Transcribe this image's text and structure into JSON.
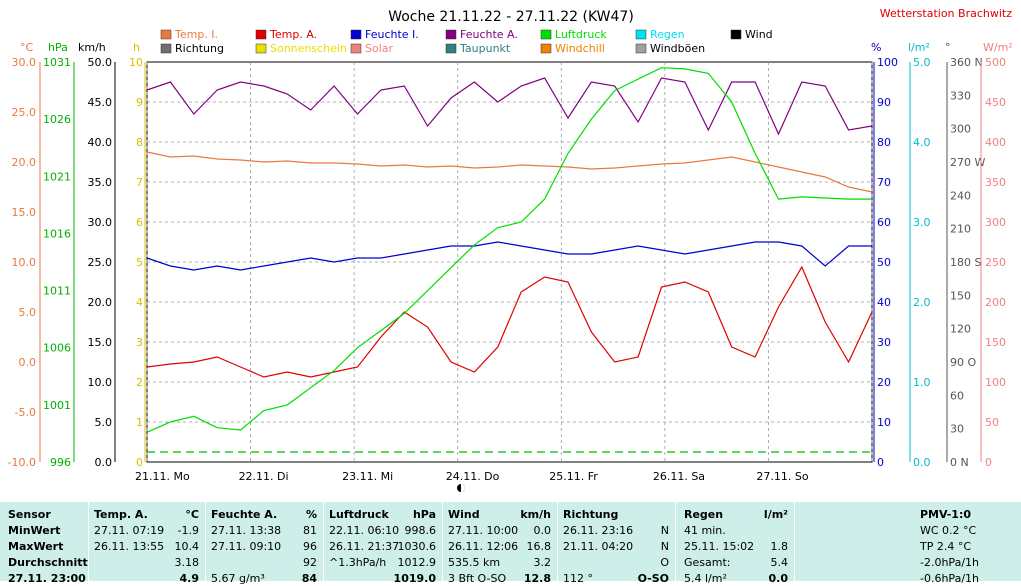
{
  "header": {
    "title": "Woche 21.11.22 - 27.11.22 (KW47)",
    "station": "Wetterstation Brachwitz"
  },
  "colors": {
    "temp_i": "#e87a40",
    "temp_a": "#e00000",
    "feuchte_i": "#0000d0",
    "feuchte_a": "#800080",
    "luftdruck": "#00dd00",
    "regen": "#00e0f0",
    "wind": "#000000",
    "richtung": "#707070",
    "sonnenschein": "#e8e000",
    "solar": "#f08080",
    "taupunkt": "#308080",
    "windchill": "#f08000",
    "windboeen": "#a0a0a0"
  },
  "legend": {
    "temp_i": "Temp. I.",
    "temp_a": "Temp. A.",
    "feuchte_i": "Feuchte I.",
    "feuchte_a": "Feuchte A.",
    "luftdruck": "Luftdruck",
    "regen": "Regen",
    "wind": "Wind",
    "richtung": "Richtung",
    "sonnenschein": "Sonnenschein",
    "solar": "Solar",
    "taupunkt": "Taupunkt",
    "windchill": "Windchill",
    "windboeen": "Windböen"
  },
  "units": {
    "celsius": "°C",
    "hpa": "hPa",
    "kmh": "km/h",
    "h": "h",
    "percent": "%",
    "lm2": "l/m²",
    "deg": "°",
    "wm2": "W/m²"
  },
  "chart_data": {
    "type": "line",
    "x_labels": [
      "21.11. Mo",
      "22.11. Di",
      "23.11. Mi",
      "24.11. Do",
      "25.11. Fr",
      "26.11. Sa",
      "27.11. So"
    ],
    "axes": {
      "celsius": {
        "ticks": [
          "30.0",
          "25.0",
          "20.0",
          "15.0",
          "10.0",
          "5.0",
          "0.0",
          "-5.0",
          "-10.0"
        ],
        "range": [
          -10,
          30
        ]
      },
      "hpa": {
        "ticks": [
          "1031",
          "1026",
          "1021",
          "1016",
          "1011",
          "1006",
          "1001",
          "996"
        ],
        "range": [
          996,
          1031
        ]
      },
      "kmh": {
        "ticks": [
          "50.0",
          "45.0",
          "40.0",
          "35.0",
          "30.0",
          "25.0",
          "20.0",
          "15.0",
          "10.0",
          "5.0",
          "0.0"
        ],
        "range": [
          0,
          50
        ]
      },
      "hours": {
        "ticks": [
          "10",
          "9",
          "8",
          "7",
          "6",
          "5",
          "4",
          "3",
          "2",
          "1",
          "0"
        ],
        "range": [
          0,
          10
        ]
      },
      "percent": {
        "ticks": [
          "100",
          "90",
          "80",
          "70",
          "60",
          "50",
          "40",
          "30",
          "20",
          "10",
          "0"
        ],
        "range": [
          0,
          100
        ]
      },
      "rain": {
        "ticks": [
          "5.0",
          "4.0",
          "3.0",
          "2.0",
          "1.0",
          "0.0"
        ],
        "range": [
          0,
          5
        ]
      },
      "direction": {
        "ticks": [
          "360 N",
          "330",
          "300",
          "270 W",
          "240",
          "210",
          "180 S",
          "150",
          "120",
          "90 O",
          "60",
          "30",
          "0 N"
        ],
        "range": [
          0,
          360
        ]
      },
      "solar": {
        "ticks": [
          "500",
          "450",
          "400",
          "350",
          "300",
          "250",
          "200",
          "150",
          "100",
          "50",
          "0"
        ],
        "range": [
          0,
          500
        ]
      }
    },
    "day_sample_hours": [
      0,
      4,
      8,
      11,
      13,
      16,
      20,
      24
    ],
    "series": [
      {
        "name": "Temp. I.",
        "key": "temp_i",
        "axis": "celsius",
        "values": [
          21.0,
          20.5,
          20.6,
          20.3,
          20.2,
          20.0,
          20.1,
          19.9,
          19.9,
          19.8,
          19.6,
          19.7,
          19.5,
          19.6,
          19.4,
          19.5,
          19.7,
          19.6,
          19.5,
          19.3,
          19.4,
          19.6,
          19.8,
          19.9,
          20.2,
          20.5,
          20.0,
          19.5,
          19.0,
          18.5,
          17.5,
          17.0
        ]
      },
      {
        "name": "Temp. A.",
        "key": "temp_a",
        "axis": "celsius",
        "values": [
          -0.5,
          -0.2,
          0.0,
          0.5,
          -0.5,
          -1.5,
          -1.0,
          -1.5,
          -1.0,
          -0.5,
          2.5,
          5.0,
          3.5,
          0.0,
          -1.0,
          1.5,
          7.0,
          8.5,
          8.0,
          3.0,
          0.0,
          0.5,
          7.5,
          8.0,
          7.0,
          1.5,
          0.5,
          5.5,
          9.5,
          4.0,
          0.0,
          5.0
        ]
      },
      {
        "name": "Feuchte A.",
        "key": "feuchte_a",
        "axis": "percent",
        "values": [
          93,
          95,
          87,
          93,
          95,
          94,
          92,
          88,
          94,
          87,
          93,
          94,
          84,
          91,
          95,
          90,
          94,
          96,
          86,
          95,
          94,
          85,
          96,
          95,
          83,
          95,
          95,
          82,
          95,
          94,
          83,
          84
        ]
      },
      {
        "name": "Feuchte I.",
        "key": "feuchte_i",
        "axis": "percent",
        "values": [
          51,
          49,
          48,
          49,
          48,
          49,
          50,
          51,
          50,
          51,
          51,
          52,
          53,
          54,
          54,
          55,
          54,
          53,
          52,
          52,
          53,
          54,
          53,
          52,
          53,
          54,
          55,
          55,
          54,
          49,
          54,
          54
        ]
      },
      {
        "name": "Luftdruck",
        "key": "luftdruck",
        "axis": "hpa",
        "values": [
          998.6,
          999.5,
          1000.0,
          999.0,
          998.8,
          1000.5,
          1001.0,
          1002.5,
          1004.0,
          1006.0,
          1007.5,
          1009.0,
          1011.0,
          1013.0,
          1015.0,
          1016.5,
          1017.0,
          1019.0,
          1023.0,
          1026.0,
          1028.5,
          1029.5,
          1030.5,
          1030.4,
          1030.0,
          1027.5,
          1023.0,
          1019.0,
          1019.2,
          1019.1,
          1019.0,
          1019.0
        ]
      }
    ],
    "min_max": {
      "tmin": -1.9,
      "tmax": 10.4
    }
  },
  "stats": {
    "labels": [
      "Sensor",
      "MinWert",
      "MaxWert",
      "Durchschnitt",
      "27.11. 23:00"
    ],
    "temp": {
      "title": "Temp. A.",
      "unit": "°C",
      "rows": [
        [
          "27.11.  07:19",
          "-1.9"
        ],
        [
          "26.11.  13:55",
          "10.4"
        ],
        [
          "",
          "3.18"
        ],
        [
          "",
          "4.9"
        ]
      ]
    },
    "feuchte": {
      "title": "Feuchte A.",
      "unit": "%",
      "rows": [
        [
          "27.11.  13:38",
          "81"
        ],
        [
          "27.11.  09:10",
          "96"
        ],
        [
          "",
          "92"
        ],
        [
          "5.67 g/m³",
          "84"
        ]
      ]
    },
    "druck": {
      "title": "Luftdruck",
      "unit": "hPa",
      "rows": [
        [
          "22.11.  06:10",
          "998.6"
        ],
        [
          "26.11.  21:37",
          "1030.6"
        ],
        [
          "^1.3hPa/h",
          "1012.9"
        ],
        [
          "",
          "1019.0"
        ]
      ]
    },
    "wind": {
      "title": "Wind",
      "unit": "km/h",
      "rows": [
        [
          "27.11.  10:00",
          "0.0"
        ],
        [
          "26.11.  12:06",
          "16.8"
        ],
        [
          "535.5 km",
          "3.2"
        ],
        [
          "3 Bft O-SO",
          "12.8"
        ]
      ]
    },
    "richtung": {
      "title": "Richtung",
      "rows": [
        [
          "26.11.  23:16",
          "N"
        ],
        [
          "21.11.  04:20",
          "N"
        ],
        [
          "",
          "O"
        ],
        [
          "112 °",
          "O-SO"
        ]
      ]
    },
    "regen": {
      "title": "Regen",
      "unit": "l/m²",
      "rows": [
        [
          "41 min.",
          ""
        ],
        [
          "25.11.  15:02",
          "1.8"
        ],
        [
          "Gesamt:",
          "5.4"
        ],
        [
          "5.4 l/m²",
          "0.0"
        ]
      ]
    },
    "pmv": {
      "title": "PMV-1:0",
      "rows": [
        "WC 0.2 °C",
        "TP 2.4 °C",
        "-2.0hPa/1h",
        "-0.6hPa/1h"
      ]
    }
  }
}
